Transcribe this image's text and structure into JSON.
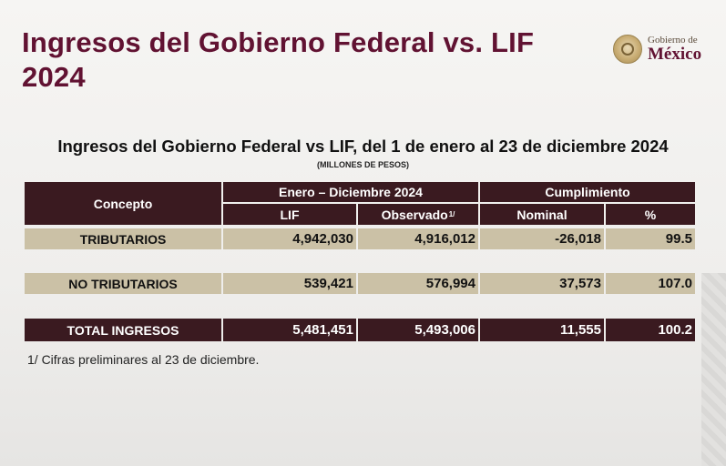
{
  "slide": {
    "title": "Ingresos del Gobierno Federal vs. LIF 2024"
  },
  "logo": {
    "line1": "Gobierno de",
    "line2": "México"
  },
  "table": {
    "title": "Ingresos del Gobierno Federal vs LIF, del 1 de enero al 23 de diciembre 2024",
    "subtitle": "(MILLONES DE PESOS)",
    "headers": {
      "concepto": "Concepto",
      "periodo": "Enero – Diciembre 2024",
      "cumplimiento": "Cumplimiento",
      "lif": "LIF",
      "observado": "Observado",
      "observado_note": "1/",
      "nominal": "Nominal",
      "pct": "%"
    },
    "rows": [
      {
        "concepto": "TRIBUTARIOS",
        "lif": "4,942,030",
        "observado": "4,916,012",
        "nominal": "-26,018",
        "pct": "99.5"
      },
      {
        "concepto": "NO TRIBUTARIOS",
        "lif": "539,421",
        "observado": "576,994",
        "nominal": "37,573",
        "pct": "107.0"
      },
      {
        "concepto": "TOTAL INGRESOS",
        "lif": "5,481,451",
        "observado": "5,493,006",
        "nominal": "11,555",
        "pct": "100.2"
      }
    ],
    "footnote": "1/  Cifras preliminares al 23 de diciembre."
  },
  "colors": {
    "brand": "#611232",
    "header_bg": "#3a1a20",
    "row_bg": "#cbc1a6"
  }
}
